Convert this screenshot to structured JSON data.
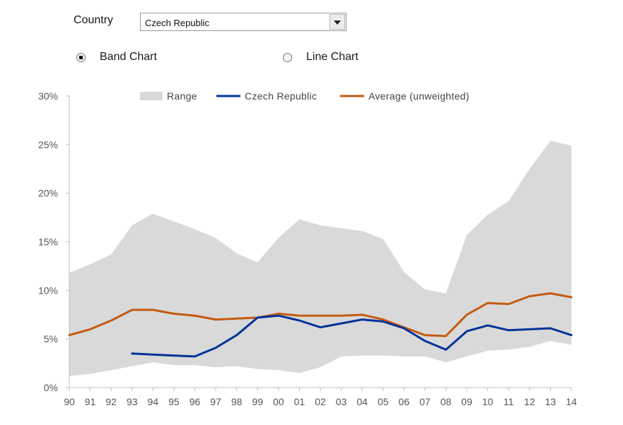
{
  "controls": {
    "country_label": "Country",
    "country_selected": "Czech Republic",
    "radio_options": [
      {
        "label": "Band Chart",
        "selected": true
      },
      {
        "label": "Line Chart",
        "selected": false
      }
    ]
  },
  "chart_data": {
    "type": "area",
    "categories": [
      "90",
      "91",
      "92",
      "93",
      "94",
      "95",
      "96",
      "97",
      "98",
      "99",
      "00",
      "01",
      "02",
      "03",
      "04",
      "05",
      "06",
      "07",
      "08",
      "09",
      "10",
      "11",
      "12",
      "13",
      "14"
    ],
    "ylim": [
      0,
      30
    ],
    "yticks": [
      "0%",
      "5%",
      "10%",
      "15%",
      "20%",
      "25%",
      "30%"
    ],
    "grid": false,
    "legend_position": "top",
    "series": [
      {
        "name": "Range",
        "type": "band",
        "color": "#d9d9d9",
        "lower": [
          1.2,
          1.4,
          1.8,
          2.2,
          2.6,
          2.3,
          2.3,
          2.1,
          2.2,
          1.9,
          1.8,
          1.5,
          2.1,
          3.2,
          3.3,
          3.3,
          3.2,
          3.2,
          2.6,
          3.2,
          3.8,
          3.9,
          4.2,
          4.8,
          4.4
        ],
        "upper": [
          11.8,
          12.7,
          13.7,
          16.7,
          17.9,
          17.1,
          16.3,
          15.4,
          13.8,
          12.9,
          15.4,
          17.3,
          16.7,
          16.4,
          16.1,
          15.3,
          11.9,
          10.1,
          9.7,
          15.7,
          17.8,
          19.2,
          22.5,
          25.4,
          24.9
        ]
      },
      {
        "name": "Czech Republic",
        "type": "line",
        "color": "#003399",
        "values": [
          null,
          null,
          null,
          3.5,
          3.4,
          3.3,
          3.2,
          4.1,
          5.4,
          7.2,
          7.4,
          6.9,
          6.2,
          6.6,
          7.0,
          6.8,
          6.1,
          4.8,
          3.9,
          5.8,
          6.4,
          5.9,
          6.0,
          6.1,
          5.4
        ]
      },
      {
        "name": "Average (unweighted)",
        "type": "line",
        "color": "#c55a11",
        "values": [
          5.4,
          6.0,
          6.9,
          8.0,
          8.0,
          7.6,
          7.4,
          7.0,
          7.1,
          7.2,
          7.6,
          7.4,
          7.4,
          7.4,
          7.5,
          7.0,
          6.2,
          5.4,
          5.3,
          7.5,
          8.7,
          8.6,
          9.4,
          9.7,
          9.3
        ]
      }
    ]
  }
}
